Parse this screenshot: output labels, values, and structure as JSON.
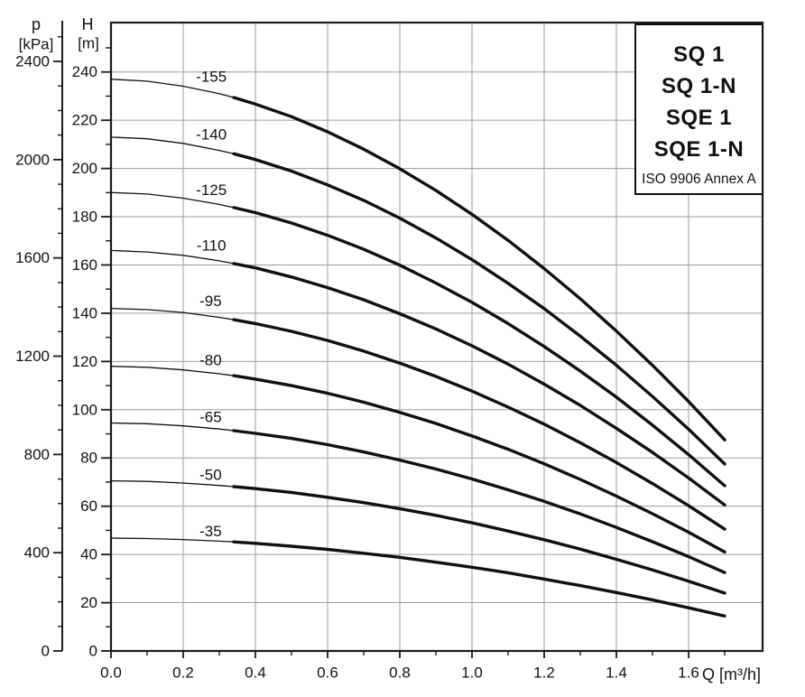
{
  "page": {
    "background": "#ffffff"
  },
  "chart_data": {
    "type": "line",
    "title": "",
    "legend": {
      "lines": [
        "SQ 1",
        "SQ 1-N",
        "SQE 1",
        "SQE 1-N"
      ],
      "note": "ISO 9906 Annex A",
      "position": "top-right"
    },
    "axes": {
      "x": {
        "title": "Q [m³/h]",
        "range": [
          0,
          1.805
        ],
        "major": [
          0,
          0.2,
          0.4,
          0.6,
          0.8,
          1.0,
          1.2,
          1.4,
          1.6
        ],
        "major_labels": [
          "0.0",
          "0.2",
          "0.4",
          "0.6",
          "0.8",
          "1.0",
          "1.2",
          "1.4",
          "1.6"
        ],
        "minor": [
          0.1,
          0.3,
          0.5,
          0.7,
          0.9,
          1.1,
          1.3,
          1.5,
          1.7
        ],
        "grid": true
      },
      "head": {
        "title_line1": "H",
        "title_line2": "[m]",
        "unit": "m",
        "range": [
          0,
          260.5
        ],
        "major": [
          0,
          20,
          40,
          60,
          80,
          100,
          120,
          140,
          160,
          180,
          200,
          220,
          240
        ],
        "minor_step": 10,
        "minor_max": 250,
        "grid": true
      },
      "pressure": {
        "title_line1": "p",
        "title_line2": "[kPa]",
        "unit": "kPa",
        "range": [
          0,
          2560
        ],
        "major": [
          0,
          400,
          800,
          1200,
          1600,
          2000,
          2400
        ],
        "minor_step": 100,
        "minor_max": 2500,
        "grid": false
      }
    },
    "style": {
      "grid_color": "#9b9b9b",
      "axis_color": "#1a1a1a",
      "curve_color": "#101010",
      "thin_width": 1.3,
      "thick_width": 3.4,
      "thick_from_q": 0.34
    },
    "series": [
      {
        "name": "-155",
        "label_at": [
          0.278,
          238
        ],
        "points": [
          [
            0,
            237
          ],
          [
            0.1,
            236.2
          ],
          [
            0.2,
            234.1
          ],
          [
            0.3,
            231.0
          ],
          [
            0.34,
            229.4
          ],
          [
            0.4,
            226.7
          ],
          [
            0.5,
            221.5
          ],
          [
            0.6,
            215.2
          ],
          [
            0.7,
            208.0
          ],
          [
            0.8,
            199.9
          ],
          [
            0.9,
            190.9
          ],
          [
            1.0,
            181.0
          ],
          [
            1.1,
            170.2
          ],
          [
            1.2,
            158.5
          ],
          [
            1.3,
            146.0
          ],
          [
            1.4,
            132.6
          ],
          [
            1.5,
            118.4
          ],
          [
            1.6,
            103.4
          ],
          [
            1.7,
            87.5
          ]
        ]
      },
      {
        "name": "-140",
        "label_at": [
          0.278,
          214
        ],
        "points": [
          [
            0,
            213
          ],
          [
            0.1,
            212.3
          ],
          [
            0.2,
            210.4
          ],
          [
            0.3,
            207.5
          ],
          [
            0.34,
            206.1
          ],
          [
            0.4,
            203.7
          ],
          [
            0.5,
            198.9
          ],
          [
            0.6,
            193.2
          ],
          [
            0.7,
            186.8
          ],
          [
            0.8,
            179.4
          ],
          [
            0.9,
            171.2
          ],
          [
            1.0,
            162.2
          ],
          [
            1.1,
            152.4
          ],
          [
            1.2,
            141.9
          ],
          [
            1.3,
            130.5
          ],
          [
            1.4,
            118.4
          ],
          [
            1.5,
            105.5
          ],
          [
            1.6,
            91.9
          ],
          [
            1.7,
            77.5
          ]
        ]
      },
      {
        "name": "-125",
        "label_at": [
          0.278,
          191
        ],
        "points": [
          [
            0,
            190
          ],
          [
            0.1,
            189.4
          ],
          [
            0.2,
            187.7
          ],
          [
            0.3,
            185.1
          ],
          [
            0.34,
            183.8
          ],
          [
            0.4,
            181.7
          ],
          [
            0.5,
            177.4
          ],
          [
            0.6,
            172.3
          ],
          [
            0.7,
            166.5
          ],
          [
            0.8,
            159.9
          ],
          [
            0.9,
            152.5
          ],
          [
            1.0,
            144.5
          ],
          [
            1.1,
            135.7
          ],
          [
            1.2,
            126.2
          ],
          [
            1.3,
            116.0
          ],
          [
            1.4,
            105.2
          ],
          [
            1.5,
            93.6
          ],
          [
            1.6,
            81.4
          ],
          [
            1.7,
            68.5
          ]
        ]
      },
      {
        "name": "-110",
        "label_at": [
          0.278,
          168
        ],
        "points": [
          [
            0,
            166
          ],
          [
            0.1,
            165.4
          ],
          [
            0.2,
            164.0
          ],
          [
            0.3,
            161.7
          ],
          [
            0.34,
            160.6
          ],
          [
            0.4,
            158.8
          ],
          [
            0.5,
            155.0
          ],
          [
            0.6,
            150.6
          ],
          [
            0.7,
            145.6
          ],
          [
            0.8,
            139.8
          ],
          [
            0.9,
            133.5
          ],
          [
            1.0,
            126.5
          ],
          [
            1.1,
            118.9
          ],
          [
            1.2,
            110.6
          ],
          [
            1.3,
            101.8
          ],
          [
            1.4,
            92.3
          ],
          [
            1.5,
            82.3
          ],
          [
            1.6,
            71.7
          ],
          [
            1.7,
            60.5
          ]
        ]
      },
      {
        "name": "-95",
        "label_at": [
          0.276,
          145
        ],
        "points": [
          [
            0,
            142
          ],
          [
            0.1,
            141.5
          ],
          [
            0.2,
            140.3
          ],
          [
            0.3,
            138.3
          ],
          [
            0.34,
            137.3
          ],
          [
            0.4,
            135.7
          ],
          [
            0.5,
            132.5
          ],
          [
            0.6,
            128.7
          ],
          [
            0.7,
            124.3
          ],
          [
            0.8,
            119.3
          ],
          [
            0.9,
            113.8
          ],
          [
            1.0,
            107.7
          ],
          [
            1.1,
            101.1
          ],
          [
            1.2,
            94.0
          ],
          [
            1.3,
            86.3
          ],
          [
            1.4,
            78.1
          ],
          [
            1.5,
            69.4
          ],
          [
            1.6,
            60.2
          ],
          [
            1.7,
            50.5
          ]
        ]
      },
      {
        "name": "-80",
        "label_at": [
          0.276,
          120.5
        ],
        "points": [
          [
            0,
            118
          ],
          [
            0.1,
            117.6
          ],
          [
            0.2,
            116.5
          ],
          [
            0.3,
            114.9
          ],
          [
            0.34,
            114.1
          ],
          [
            0.4,
            112.7
          ],
          [
            0.5,
            110.0
          ],
          [
            0.6,
            106.8
          ],
          [
            0.7,
            103.1
          ],
          [
            0.8,
            98.9
          ],
          [
            0.9,
            94.3
          ],
          [
            1.0,
            89.1
          ],
          [
            1.1,
            83.6
          ],
          [
            1.2,
            77.6
          ],
          [
            1.3,
            71.1
          ],
          [
            1.4,
            64.2
          ],
          [
            1.5,
            56.9
          ],
          [
            1.6,
            49.2
          ],
          [
            1.7,
            41.0
          ]
        ]
      },
      {
        "name": "-65",
        "label_at": [
          0.276,
          97
        ],
        "points": [
          [
            0,
            94.5
          ],
          [
            0.1,
            94.2
          ],
          [
            0.2,
            93.3
          ],
          [
            0.3,
            92.0
          ],
          [
            0.34,
            91.3
          ],
          [
            0.4,
            90.2
          ],
          [
            0.5,
            88.1
          ],
          [
            0.6,
            85.5
          ],
          [
            0.7,
            82.5
          ],
          [
            0.8,
            79.1
          ],
          [
            0.9,
            75.4
          ],
          [
            1.0,
            71.3
          ],
          [
            1.1,
            66.8
          ],
          [
            1.2,
            62.0
          ],
          [
            1.3,
            56.8
          ],
          [
            1.4,
            51.2
          ],
          [
            1.5,
            45.3
          ],
          [
            1.6,
            39.1
          ],
          [
            1.7,
            32.5
          ]
        ]
      },
      {
        "name": "-50",
        "label_at": [
          0.276,
          73
        ],
        "points": [
          [
            0,
            70.5
          ],
          [
            0.1,
            70.3
          ],
          [
            0.2,
            69.6
          ],
          [
            0.3,
            68.6
          ],
          [
            0.34,
            68.1
          ],
          [
            0.4,
            67.3
          ],
          [
            0.5,
            65.7
          ],
          [
            0.6,
            63.7
          ],
          [
            0.7,
            61.5
          ],
          [
            0.8,
            59.0
          ],
          [
            0.9,
            56.2
          ],
          [
            1.0,
            53.1
          ],
          [
            1.1,
            49.7
          ],
          [
            1.2,
            46.1
          ],
          [
            1.3,
            42.2
          ],
          [
            1.4,
            38.0
          ],
          [
            1.5,
            33.6
          ],
          [
            1.6,
            28.9
          ],
          [
            1.7,
            24.0
          ]
        ]
      },
      {
        "name": "-35",
        "label_at": [
          0.276,
          49.5
        ],
        "points": [
          [
            0,
            46.8
          ],
          [
            0.1,
            46.6
          ],
          [
            0.2,
            46.2
          ],
          [
            0.3,
            45.5
          ],
          [
            0.34,
            45.2
          ],
          [
            0.4,
            44.6
          ],
          [
            0.5,
            43.4
          ],
          [
            0.6,
            42.1
          ],
          [
            0.7,
            40.5
          ],
          [
            0.8,
            38.8
          ],
          [
            0.9,
            36.8
          ],
          [
            1.0,
            34.7
          ],
          [
            1.1,
            32.4
          ],
          [
            1.2,
            29.8
          ],
          [
            1.3,
            27.1
          ],
          [
            1.4,
            24.2
          ],
          [
            1.5,
            21.2
          ],
          [
            1.6,
            17.9
          ],
          [
            1.7,
            14.5
          ]
        ]
      }
    ]
  }
}
